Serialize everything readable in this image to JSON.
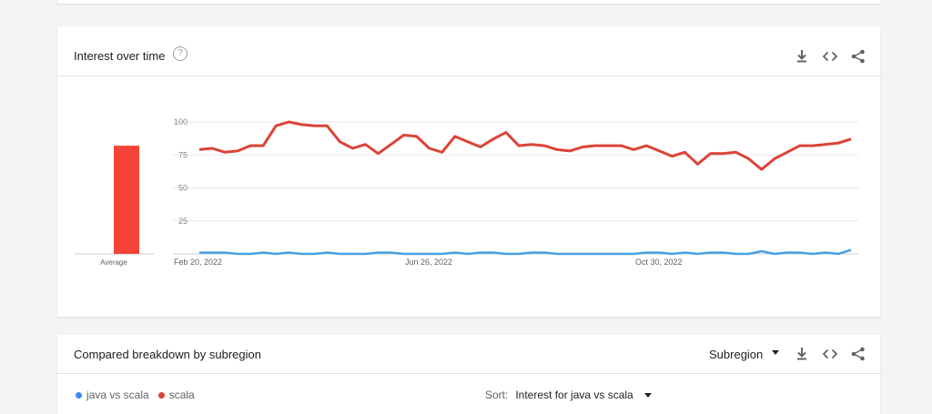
{
  "interest_card": {
    "title": "Interest over time",
    "help_icon": "question-circle-icon",
    "tools": [
      "download-icon",
      "embed-code-icon",
      "share-icon"
    ]
  },
  "compare_card": {
    "title": "Compared breakdown by subregion",
    "subregion_select": "Subregion",
    "tools": [
      "download-icon",
      "embed-code-icon",
      "share-icon"
    ],
    "legend": [
      {
        "label": "java vs scala",
        "color": "#4285f4"
      },
      {
        "label": "scala",
        "color": "#db4437"
      }
    ],
    "sort_label": "Sort:",
    "sort_value": "Interest for java vs scala"
  },
  "chart_data": [
    {
      "type": "bar",
      "categories": [
        "Average"
      ],
      "series": [
        {
          "name": "scala",
          "values": [
            82
          ],
          "color": "#f44336"
        }
      ],
      "ylim": [
        0,
        100
      ]
    },
    {
      "type": "line",
      "x_tick_labels": [
        "Feb 20, 2022",
        "Jun 26, 2022",
        "Oct 30, 2022"
      ],
      "y_tick_labels": [
        "100",
        "75",
        "50",
        "25"
      ],
      "yticks": [
        25,
        50,
        75,
        100
      ],
      "ylim": [
        0,
        100
      ],
      "grid": true,
      "series": [
        {
          "name": "scala",
          "color": "#db4437",
          "values": [
            79,
            80,
            77,
            78,
            82,
            82,
            97,
            100,
            98,
            97,
            97,
            85,
            80,
            83,
            76,
            83,
            90,
            89,
            80,
            77,
            89,
            85,
            81,
            87,
            92,
            82,
            83,
            82,
            79,
            78,
            81,
            82,
            82,
            82,
            79,
            82,
            78,
            74,
            77,
            68,
            76,
            76,
            77,
            72,
            64,
            72,
            77,
            82,
            82,
            83,
            84,
            87
          ]
        },
        {
          "name": "java vs scala",
          "color": "#4a9fe0",
          "values": [
            1,
            1,
            1,
            0,
            0,
            1,
            0,
            1,
            0,
            0,
            1,
            0,
            0,
            0,
            1,
            1,
            0,
            0,
            0,
            0,
            1,
            0,
            1,
            1,
            0,
            0,
            1,
            1,
            0,
            0,
            0,
            0,
            0,
            0,
            0,
            1,
            1,
            0,
            1,
            0,
            1,
            1,
            0,
            0,
            2,
            0,
            1,
            1,
            0,
            1,
            0,
            3
          ]
        }
      ]
    }
  ]
}
